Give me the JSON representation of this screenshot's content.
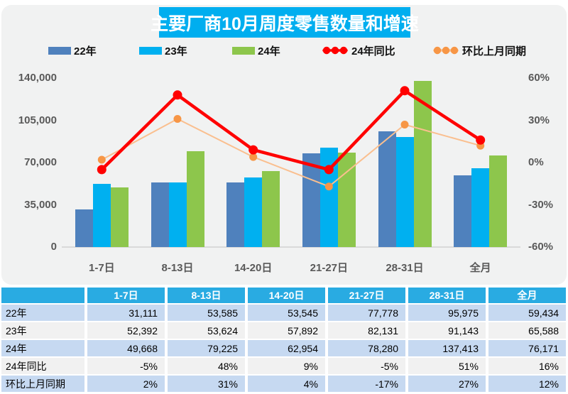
{
  "title": "主要厂商10月周度零售数量和增速",
  "chart_data": {
    "type": "combo-bar-line",
    "categories": [
      "1-7日",
      "8-13日",
      "14-20日",
      "21-27日",
      "28-31日",
      "全月"
    ],
    "bar_series": [
      {
        "name": "22年",
        "color": "#4F81BD",
        "values": [
          31111,
          53585,
          53545,
          77778,
          95975,
          59434
        ]
      },
      {
        "name": "23年",
        "color": "#00B0F0",
        "values": [
          52392,
          53624,
          57892,
          82131,
          91143,
          65588
        ]
      },
      {
        "name": "24年",
        "color": "#8DC64C",
        "values": [
          49668,
          79225,
          62954,
          78280,
          137413,
          76171
        ]
      }
    ],
    "line_series": [
      {
        "name": "24年同比",
        "line_color": "#FF0000",
        "marker_color": "#FF0000",
        "line_width": 4.5,
        "marker_r": 6.5,
        "values": [
          -5,
          48,
          9,
          -5,
          51,
          16
        ]
      },
      {
        "name": "环比上月同期",
        "line_color": "#FABF8F",
        "marker_color": "#F79646",
        "line_width": 2,
        "marker_r": 5.5,
        "values": [
          2,
          31,
          4,
          -17,
          27,
          12
        ]
      }
    ],
    "left_axis": {
      "tick_labels": [
        "140,000",
        "105,000",
        "70,000",
        "35,000",
        "0"
      ],
      "min": 0,
      "max": 140000
    },
    "right_axis": {
      "tick_labels": [
        "60%",
        "30%",
        "0%",
        "-30%",
        "-60%"
      ],
      "min": -60,
      "max": 60
    },
    "legend_position": "top",
    "grid": false
  },
  "table": {
    "header": [
      "",
      "1-7日",
      "8-13日",
      "14-20日",
      "21-27日",
      "28-31日",
      "全月"
    ],
    "rows": [
      {
        "label": "22年",
        "cells": [
          "31,111",
          "53,585",
          "53,545",
          "77,778",
          "95,975",
          "59,434"
        ]
      },
      {
        "label": "23年",
        "cells": [
          "52,392",
          "53,624",
          "57,892",
          "82,131",
          "91,143",
          "65,588"
        ]
      },
      {
        "label": "24年",
        "cells": [
          "49,668",
          "79,225",
          "62,954",
          "78,280",
          "137,413",
          "76,171"
        ]
      },
      {
        "label": "24年同比",
        "cells": [
          "-5%",
          "48%",
          "9%",
          "-5%",
          "51%",
          "16%"
        ]
      },
      {
        "label": "环比上月同期",
        "cells": [
          "2%",
          "31%",
          "4%",
          "-17%",
          "27%",
          "12%"
        ]
      }
    ]
  },
  "colors": {
    "title_bg": "#00AEEF",
    "panel_bg": "#F1F2F2",
    "table_header_bg": "#29ABE2",
    "row_blue": "#C6D9F1",
    "row_gray": "#F1F1F1",
    "axis_text": "#595959",
    "baseline": "#D9D9D9"
  }
}
